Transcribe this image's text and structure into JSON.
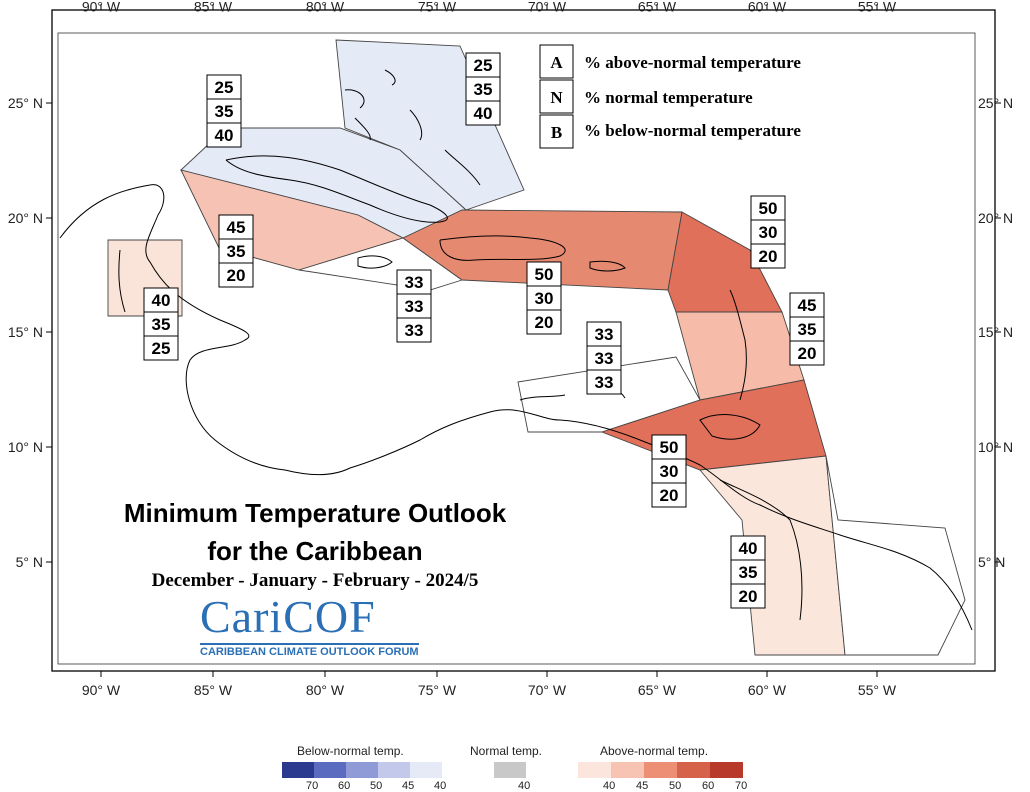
{
  "axes": {
    "lon_labels": [
      "90° W",
      "85° W",
      "80° W",
      "75° W",
      "70° W",
      "65° W",
      "60° W",
      "55° W"
    ],
    "lat_labels_left": [
      "25° N",
      "20° N",
      "15° N",
      "10° N",
      "5° N"
    ],
    "lat_labels_right": [
      "25° N",
      "20° N",
      "15° N",
      "10° N",
      "5° N"
    ]
  },
  "legend": {
    "rows": [
      {
        "key": "A",
        "text": "% above-normal temperature"
      },
      {
        "key": "N",
        "text": "% normal temperature"
      },
      {
        "key": "B",
        "text": "% below-normal temperature"
      }
    ]
  },
  "regions": [
    {
      "id": "bahamas",
      "A": "25",
      "N": "35",
      "B": "40",
      "category": "below",
      "level": 40,
      "color": "#e5eaf7"
    },
    {
      "id": "cuba",
      "A": "25",
      "N": "35",
      "B": "40",
      "category": "below",
      "level": 40,
      "color": "#e5eaf7"
    },
    {
      "id": "cayman",
      "A": "45",
      "N": "35",
      "B": "20",
      "category": "above",
      "level": 45,
      "color": "#f6c2b3"
    },
    {
      "id": "belize",
      "A": "40",
      "N": "35",
      "B": "25",
      "category": "above",
      "level": 40,
      "color": "#fae3d9"
    },
    {
      "id": "jamaica",
      "A": "33",
      "N": "33",
      "B": "33",
      "category": "normal",
      "level": 33,
      "color": "#ffffff"
    },
    {
      "id": "hispaniola",
      "A": "50",
      "N": "30",
      "B": "20",
      "category": "above",
      "level": 50,
      "color": "#e58a70"
    },
    {
      "id": "leeward",
      "A": "50",
      "N": "30",
      "B": "20",
      "category": "above",
      "level": 50,
      "color": "#e0705a"
    },
    {
      "id": "windward",
      "A": "45",
      "N": "35",
      "B": "20",
      "category": "above",
      "level": 45,
      "color": "#f6bca9"
    },
    {
      "id": "abc",
      "A": "33",
      "N": "33",
      "B": "33",
      "category": "normal",
      "level": 33,
      "color": "#ffffff"
    },
    {
      "id": "trinidad",
      "A": "50",
      "N": "30",
      "B": "20",
      "category": "above",
      "level": 50,
      "color": "#e0705a"
    },
    {
      "id": "guyana",
      "A": "40",
      "N": "35",
      "B": "20",
      "category": "above",
      "level": 40,
      "color": "#fbe6dc"
    },
    {
      "id": "suriname",
      "A": "",
      "N": "",
      "B": "",
      "category": "none",
      "level": 0,
      "color": "#ffffff"
    }
  ],
  "title": {
    "line1": "Minimum Temperature Outlook",
    "line2": "for the Caribbean",
    "season": "December - January - February - 2024/5"
  },
  "logo": {
    "name": "CariCOF",
    "subtitle": "CARIBBEAN CLIMATE OUTLOOK FORUM"
  },
  "colorbar": {
    "below_label": "Below-normal temp.",
    "normal_label": "Normal temp.",
    "above_label": "Above-normal temp.",
    "below_ticks": [
      "70",
      "60",
      "50",
      "45",
      "40"
    ],
    "normal_ticks": [
      "40"
    ],
    "above_ticks": [
      "40",
      "45",
      "50",
      "60",
      "70"
    ],
    "below_colors": [
      "#2b3a8f",
      "#5a6bc0",
      "#8e9bd6",
      "#c2c9ea",
      "#e6eaf7"
    ],
    "normal_color": "#c8c8c8",
    "above_colors": [
      "#fbe5dc",
      "#f7c4b3",
      "#ec8f75",
      "#d6624a",
      "#b83a2a"
    ]
  }
}
